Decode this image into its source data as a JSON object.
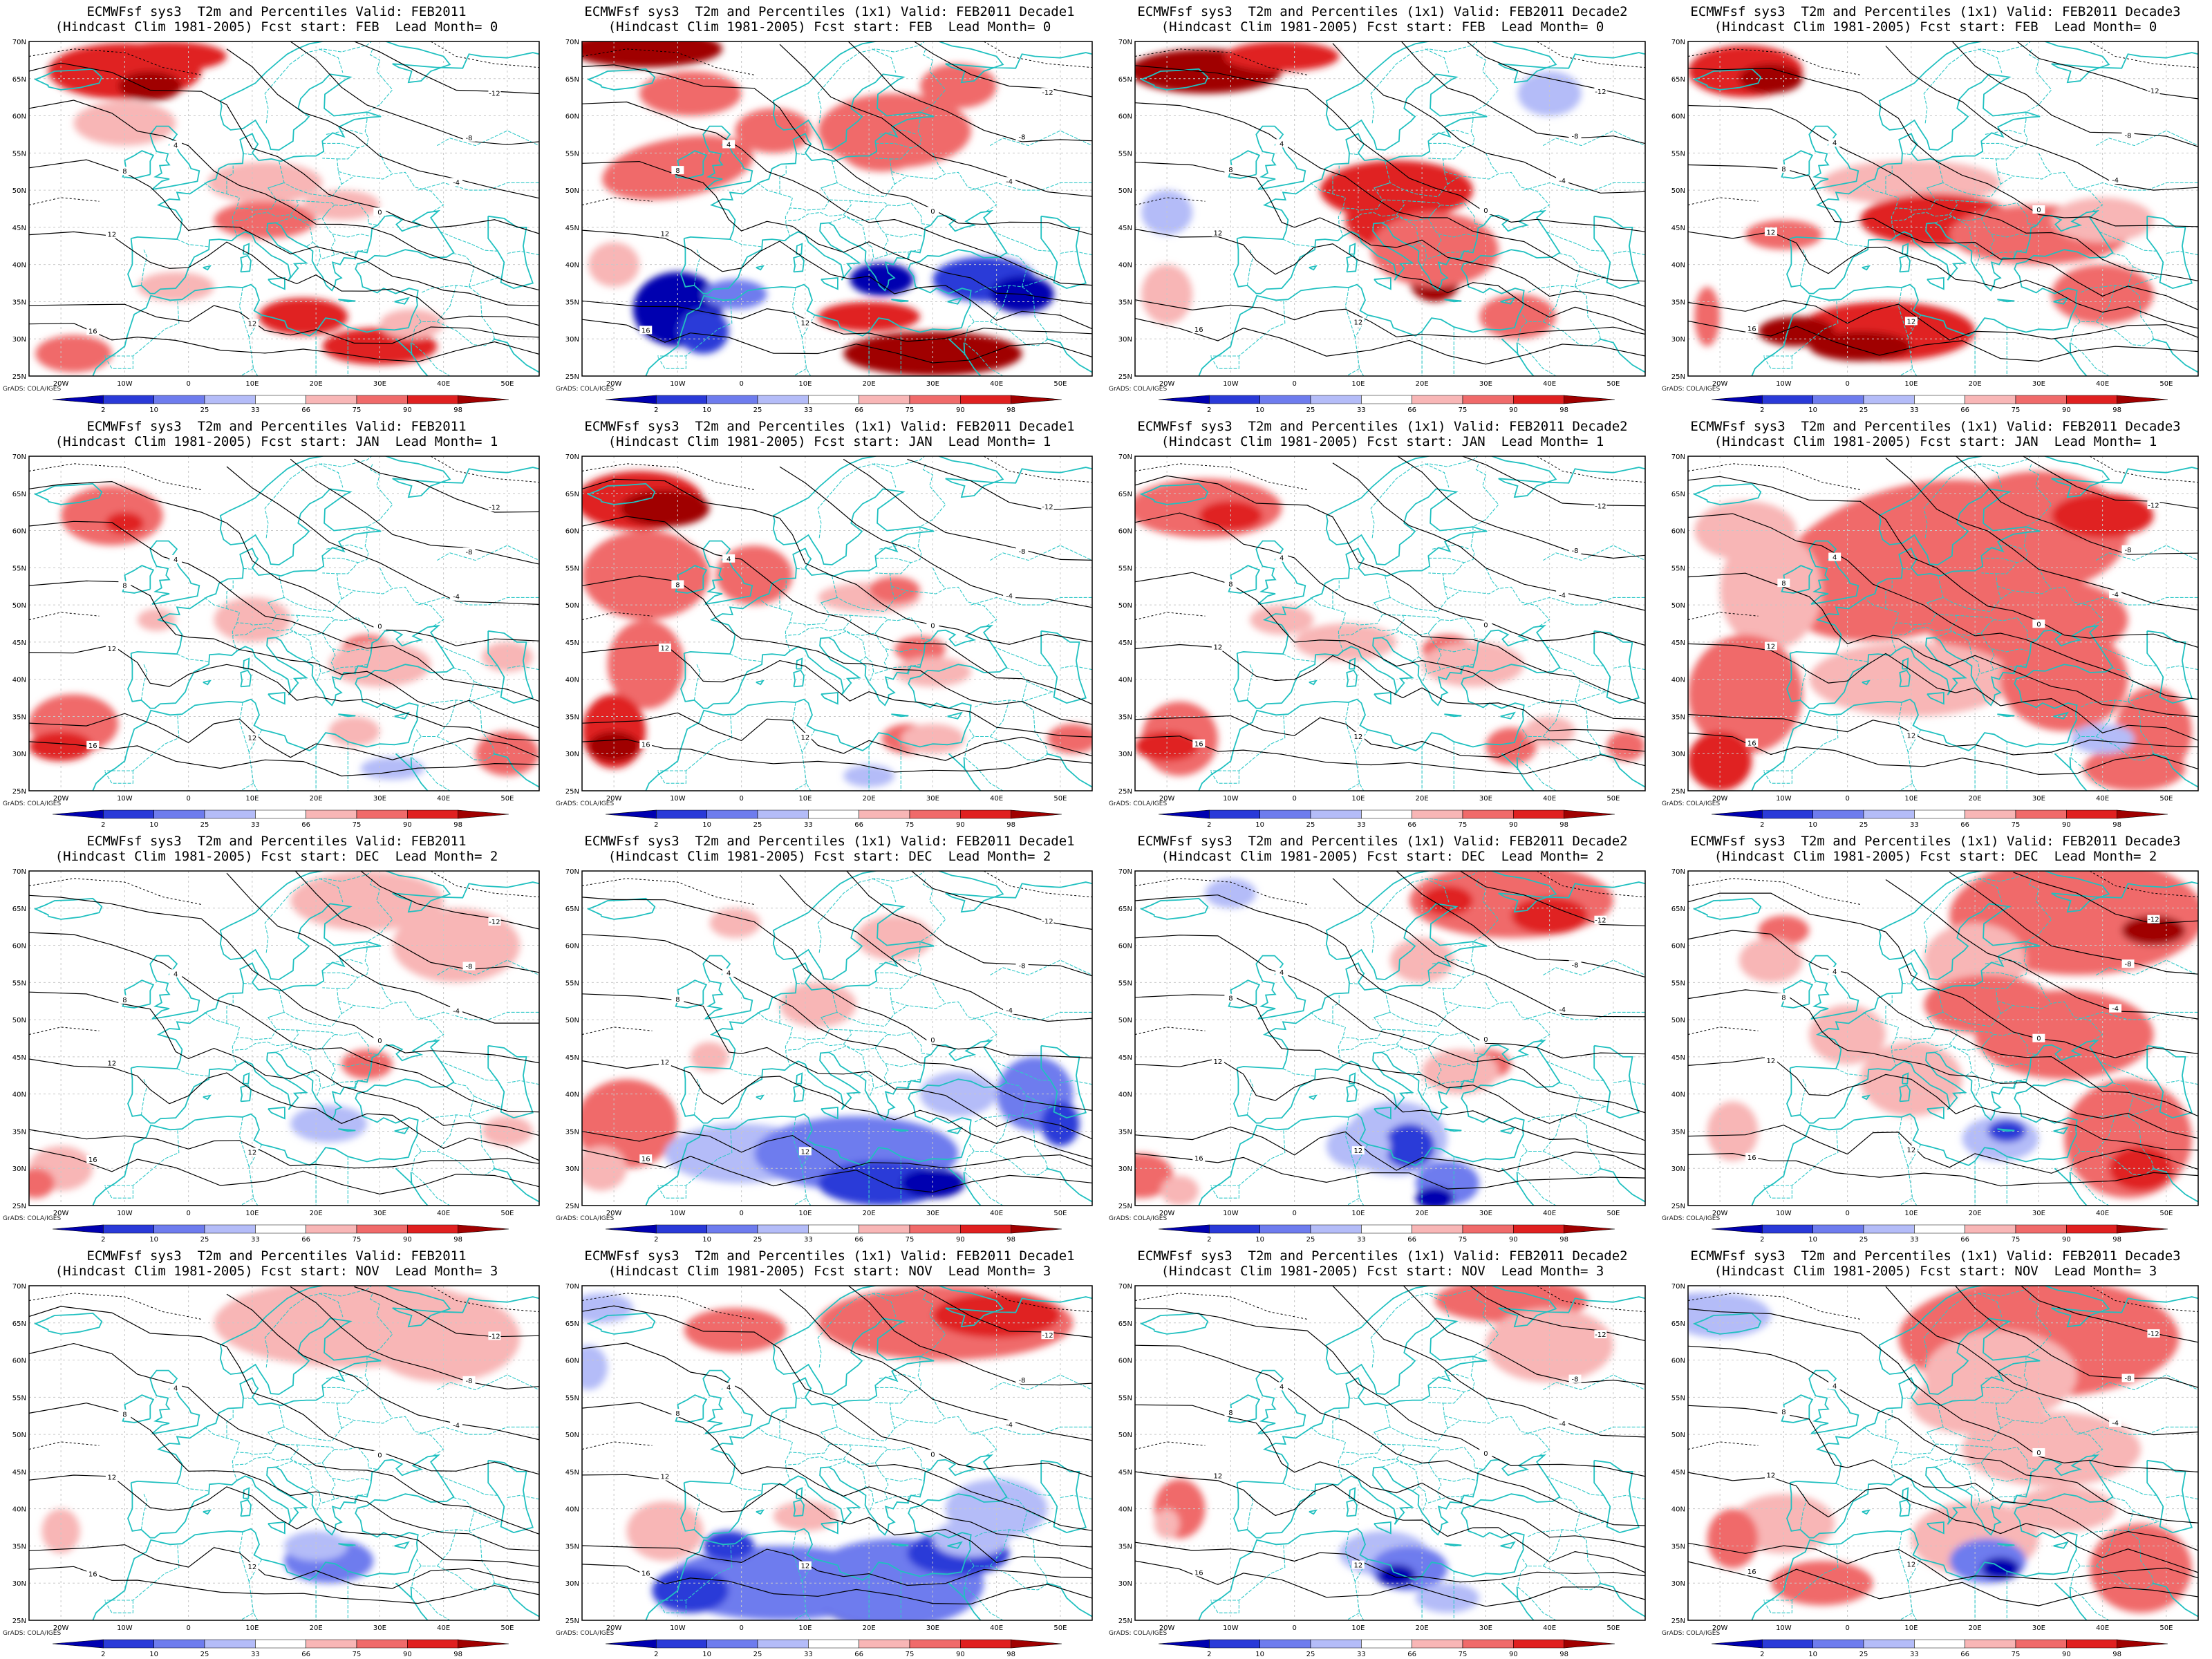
{
  "lat_labels": [
    "70N",
    "65N",
    "60N",
    "55N",
    "50N",
    "45N",
    "40N",
    "35N",
    "30N",
    "25N"
  ],
  "lon_labels": [
    "20W",
    "10W",
    "0",
    "10E",
    "20E",
    "30E",
    "40E",
    "50E"
  ],
  "colorbar_ticks": [
    "2",
    "10",
    "25",
    "33",
    "66",
    "75",
    "90",
    "98"
  ],
  "colorbar_colors": [
    "#0000b0",
    "#2a3ad8",
    "#6e7cee",
    "#b4bcf8",
    "#ffffff",
    "#f8b6b6",
    "#f06a6a",
    "#e02020",
    "#a00000"
  ],
  "credit": "GrADS: COLA/IGES",
  "panels": [
    {
      "title1": "ECMWFsf sys3  T2m and Percentiles Valid: FEB2011",
      "title2": "(Hindcast Clim 1981-2005) Fcst start: FEB  Lead Month= 0"
    },
    {
      "title1": "ECMWFsf sys3  T2m and Percentiles (1x1) Valid: FEB2011 Decade1",
      "title2": "(Hindcast Clim 1981-2005) Fcst start: FEB  Lead Month= 0"
    },
    {
      "title1": "ECMWFsf sys3  T2m and Percentiles (1x1) Valid: FEB2011 Decade2",
      "title2": "(Hindcast Clim 1981-2005) Fcst start: FEB  Lead Month= 0"
    },
    {
      "title1": "ECMWFsf sys3  T2m and Percentiles (1x1) Valid: FEB2011 Decade3",
      "title2": "(Hindcast Clim 1981-2005) Fcst start: FEB  Lead Month= 0"
    },
    {
      "title1": "ECMWFsf sys3  T2m and Percentiles Valid: FEB2011",
      "title2": "(Hindcast Clim 1981-2005) Fcst start: JAN  Lead Month= 1"
    },
    {
      "title1": "ECMWFsf sys3  T2m and Percentiles (1x1) Valid: FEB2011 Decade1",
      "title2": "(Hindcast Clim 1981-2005) Fcst start: JAN  Lead Month= 1"
    },
    {
      "title1": "ECMWFsf sys3  T2m and Percentiles (1x1) Valid: FEB2011 Decade2",
      "title2": "(Hindcast Clim 1981-2005) Fcst start: JAN  Lead Month= 1"
    },
    {
      "title1": "ECMWFsf sys3  T2m and Percentiles (1x1) Valid: FEB2011 Decade3",
      "title2": "(Hindcast Clim 1981-2005) Fcst start: JAN  Lead Month= 1"
    },
    {
      "title1": "ECMWFsf sys3  T2m and Percentiles Valid: FEB2011",
      "title2": "(Hindcast Clim 1981-2005) Fcst start: DEC  Lead Month= 2"
    },
    {
      "title1": "ECMWFsf sys3  T2m and Percentiles (1x1) Valid: FEB2011 Decade1",
      "title2": "(Hindcast Clim 1981-2005) Fcst start: DEC  Lead Month= 2"
    },
    {
      "title1": "ECMWFsf sys3  T2m and Percentiles (1x1) Valid: FEB2011 Decade2",
      "title2": "(Hindcast Clim 1981-2005) Fcst start: DEC  Lead Month= 2"
    },
    {
      "title1": "ECMWFsf sys3  T2m and Percentiles (1x1) Valid: FEB2011 Decade3",
      "title2": "(Hindcast Clim 1981-2005) Fcst start: DEC  Lead Month= 2"
    },
    {
      "title1": "ECMWFsf sys3  T2m and Percentiles Valid: FEB2011",
      "title2": "(Hindcast Clim 1981-2005) Fcst start: NOV  Lead Month= 3"
    },
    {
      "title1": "ECMWFsf sys3  T2m and Percentiles (1x1) Valid: FEB2011 Decade1",
      "title2": "(Hindcast Clim 1981-2005) Fcst start: NOV  Lead Month= 3"
    },
    {
      "title1": "ECMWFsf sys3  T2m and Percentiles (1x1) Valid: FEB2011 Decade2",
      "title2": "(Hindcast Clim 1981-2005) Fcst start: NOV  Lead Month= 3"
    },
    {
      "title1": "ECMWFsf sys3  T2m and Percentiles (1x1) Valid: FEB2011 Decade3",
      "title2": "(Hindcast Clim 1981-2005) Fcst start: NOV  Lead Month= 3"
    }
  ]
}
